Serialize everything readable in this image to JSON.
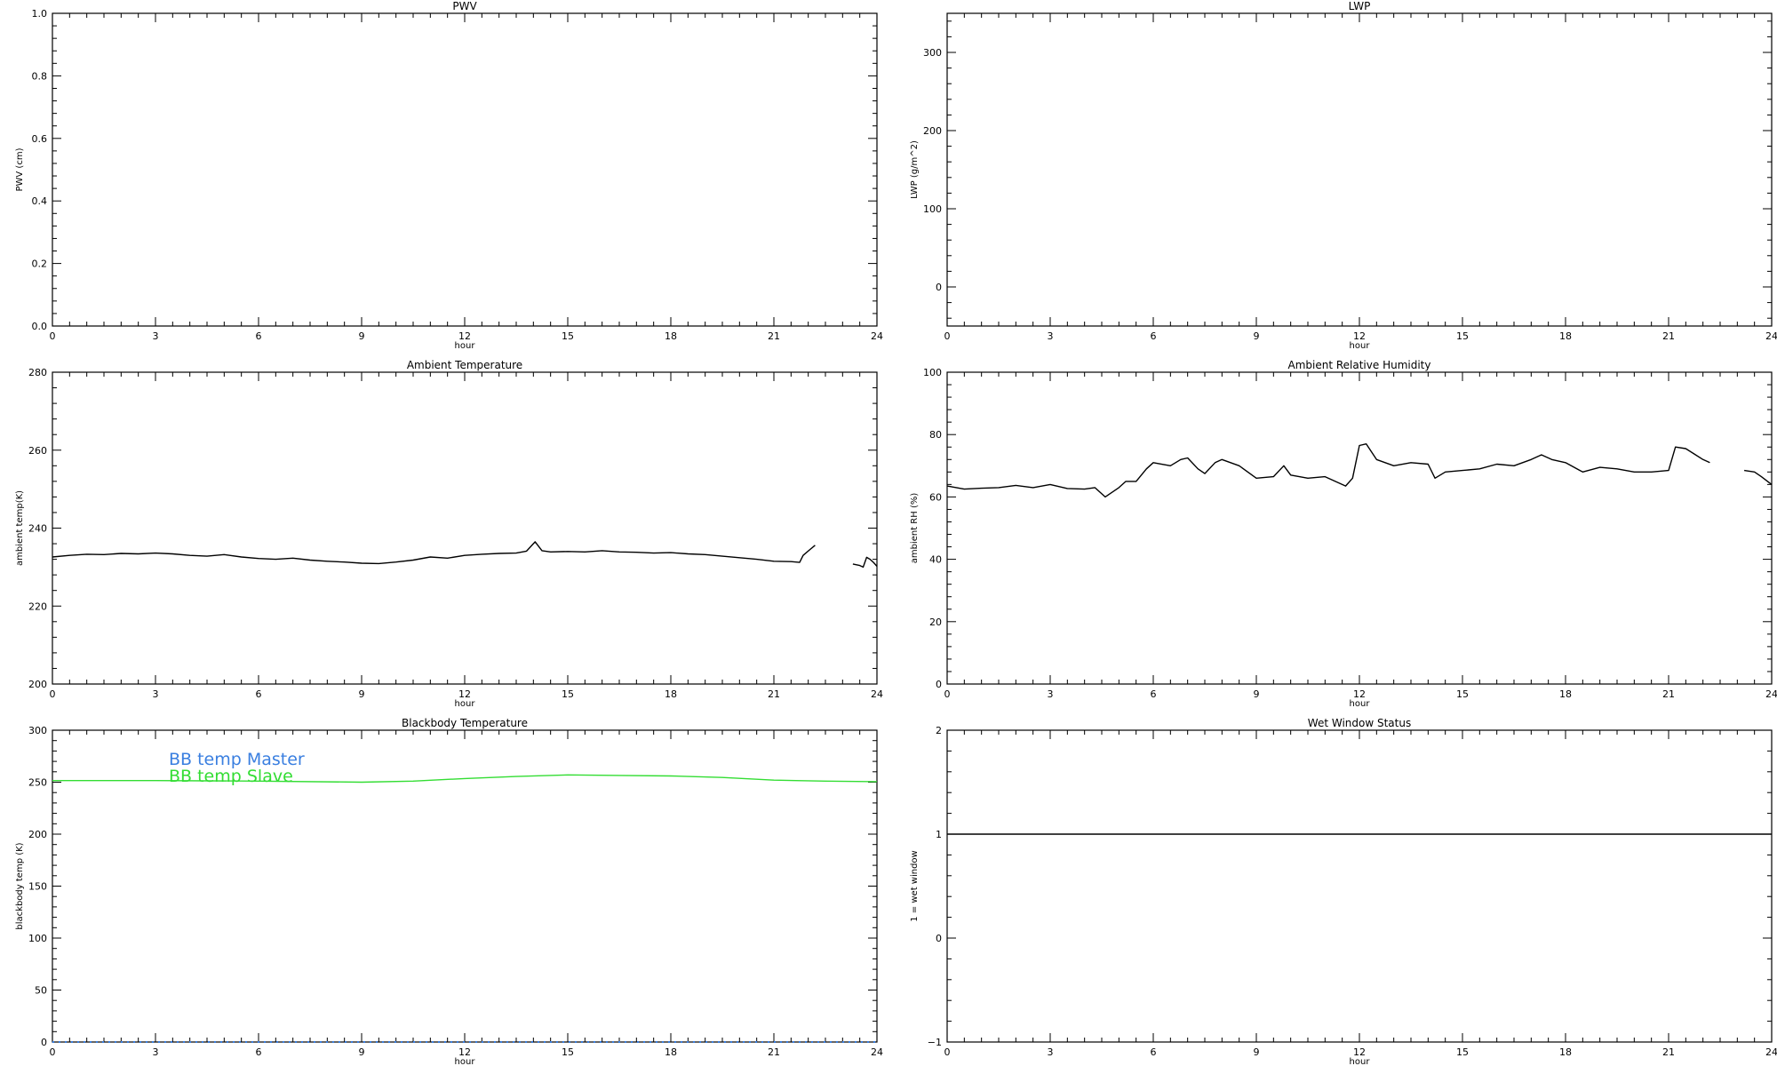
{
  "chart_data": [
    {
      "type": "line",
      "title": "PWV",
      "xlabel": "hour",
      "ylabel": "PWV (cm)",
      "xlim": [
        0,
        24
      ],
      "ylim": [
        0,
        1.0
      ],
      "xticks": [
        0,
        3,
        6,
        9,
        12,
        15,
        18,
        21,
        24
      ],
      "yticks": [
        0.0,
        0.2,
        0.4,
        0.6,
        0.8,
        1.0
      ],
      "ytick_labels": [
        "0.0",
        "0.2",
        "0.4",
        "0.6",
        "0.8",
        "1.0"
      ],
      "series": []
    },
    {
      "type": "line",
      "title": "LWP",
      "xlabel": "hour",
      "ylabel": "LWP (g/m^2)",
      "xlim": [
        0,
        24
      ],
      "ylim": [
        -50,
        350
      ],
      "xticks": [
        0,
        3,
        6,
        9,
        12,
        15,
        18,
        21,
        24
      ],
      "yticks": [
        0,
        100,
        200,
        300
      ],
      "ytick_labels": [
        "0",
        "100",
        "200",
        "300"
      ],
      "series": []
    },
    {
      "type": "line",
      "title": "Ambient Temperature",
      "xlabel": "hour",
      "ylabel": "ambient temp(K)",
      "xlim": [
        0,
        24
      ],
      "ylim": [
        200,
        280
      ],
      "xticks": [
        0,
        3,
        6,
        9,
        12,
        15,
        18,
        21,
        24
      ],
      "yticks": [
        200,
        220,
        240,
        260,
        280
      ],
      "ytick_labels": [
        "200",
        "220",
        "240",
        "260",
        "280"
      ],
      "series": [
        {
          "color": "#000000",
          "segments": [
            [
              [
                0,
                232.6
              ],
              [
                0.5,
                233.0
              ],
              [
                1,
                233.3
              ],
              [
                1.5,
                233.2
              ],
              [
                2,
                233.5
              ],
              [
                2.5,
                233.4
              ],
              [
                3,
                233.6
              ],
              [
                3.5,
                233.4
              ],
              [
                4,
                233.0
              ],
              [
                4.5,
                232.8
              ],
              [
                5,
                233.2
              ],
              [
                5.5,
                232.6
              ],
              [
                6,
                232.2
              ],
              [
                6.5,
                232.0
              ],
              [
                7,
                232.3
              ],
              [
                7.5,
                231.8
              ],
              [
                8,
                231.5
              ],
              [
                8.5,
                231.3
              ],
              [
                9,
                231.0
              ],
              [
                9.5,
                230.9
              ],
              [
                10,
                231.3
              ],
              [
                10.5,
                231.8
              ],
              [
                11,
                232.6
              ],
              [
                11.5,
                232.3
              ],
              [
                12,
                233.0
              ],
              [
                12.5,
                233.3
              ],
              [
                13,
                233.5
              ],
              [
                13.5,
                233.6
              ],
              [
                13.8,
                234.1
              ],
              [
                14.05,
                236.5
              ],
              [
                14.25,
                234.2
              ],
              [
                14.5,
                233.9
              ],
              [
                15,
                234.0
              ],
              [
                15.5,
                233.9
              ],
              [
                16,
                234.2
              ],
              [
                16.5,
                233.9
              ],
              [
                17,
                233.8
              ],
              [
                17.5,
                233.6
              ],
              [
                18,
                233.7
              ],
              [
                18.5,
                233.4
              ],
              [
                19,
                233.2
              ],
              [
                19.5,
                232.8
              ],
              [
                20,
                232.4
              ],
              [
                20.5,
                232.0
              ],
              [
                21,
                231.5
              ],
              [
                21.5,
                231.4
              ],
              [
                21.75,
                231.2
              ],
              [
                21.85,
                233.0
              ],
              [
                22.05,
                234.5
              ],
              [
                22.2,
                235.6
              ]
            ],
            [
              [
                23.3,
                230.8
              ],
              [
                23.5,
                230.4
              ],
              [
                23.6,
                230.0
              ],
              [
                23.7,
                232.5
              ],
              [
                23.8,
                232.0
              ],
              [
                23.9,
                231.2
              ],
              [
                24,
                230.2
              ]
            ]
          ]
        }
      ]
    },
    {
      "type": "line",
      "title": "Ambient Relative Humidity",
      "xlabel": "hour",
      "ylabel": "ambient RH (%)",
      "xlim": [
        0,
        24
      ],
      "ylim": [
        0,
        100
      ],
      "xticks": [
        0,
        3,
        6,
        9,
        12,
        15,
        18,
        21,
        24
      ],
      "yticks": [
        0,
        20,
        40,
        60,
        80,
        100
      ],
      "ytick_labels": [
        "0",
        "20",
        "40",
        "60",
        "80",
        "100"
      ],
      "series": [
        {
          "color": "#000000",
          "segments": [
            [
              [
                0,
                63.5
              ],
              [
                0.5,
                62.5
              ],
              [
                1,
                62.8
              ],
              [
                1.5,
                63.0
              ],
              [
                2,
                63.7
              ],
              [
                2.5,
                63.0
              ],
              [
                3,
                64.0
              ],
              [
                3.5,
                62.7
              ],
              [
                4,
                62.5
              ],
              [
                4.3,
                63.0
              ],
              [
                4.6,
                60.0
              ],
              [
                5,
                63.0
              ],
              [
                5.2,
                65.0
              ],
              [
                5.5,
                65.0
              ],
              [
                5.8,
                69.0
              ],
              [
                6,
                71.0
              ],
              [
                6.5,
                70.0
              ],
              [
                6.8,
                72.0
              ],
              [
                7,
                72.5
              ],
              [
                7.3,
                69.0
              ],
              [
                7.5,
                67.5
              ],
              [
                7.8,
                71.0
              ],
              [
                8,
                72.0
              ],
              [
                8.5,
                70.0
              ],
              [
                9,
                66.0
              ],
              [
                9.5,
                66.5
              ],
              [
                9.8,
                70.0
              ],
              [
                10,
                67.0
              ],
              [
                10.5,
                66.0
              ],
              [
                11,
                66.5
              ],
              [
                11.3,
                65.0
              ],
              [
                11.6,
                63.5
              ],
              [
                11.8,
                66.0
              ],
              [
                12,
                76.5
              ],
              [
                12.2,
                77.0
              ],
              [
                12.5,
                72.0
              ],
              [
                13,
                70.0
              ],
              [
                13.5,
                71.0
              ],
              [
                14,
                70.5
              ],
              [
                14.2,
                66.0
              ],
              [
                14.5,
                68.0
              ],
              [
                15,
                68.5
              ],
              [
                15.5,
                69.0
              ],
              [
                16,
                70.5
              ],
              [
                16.5,
                70.0
              ],
              [
                17,
                72.0
              ],
              [
                17.3,
                73.5
              ],
              [
                17.6,
                72.0
              ],
              [
                18,
                71.0
              ],
              [
                18.5,
                68.0
              ],
              [
                19,
                69.5
              ],
              [
                19.5,
                69.0
              ],
              [
                20,
                68.0
              ],
              [
                20.5,
                68.0
              ],
              [
                21,
                68.5
              ],
              [
                21.2,
                76.0
              ],
              [
                21.5,
                75.5
              ],
              [
                22,
                72.0
              ],
              [
                22.2,
                71.0
              ]
            ],
            [
              [
                23.2,
                68.5
              ],
              [
                23.5,
                68.0
              ],
              [
                23.7,
                66.5
              ],
              [
                24,
                64.0
              ]
            ]
          ]
        }
      ]
    },
    {
      "type": "line",
      "title": "Blackbody Temperature",
      "xlabel": "hour",
      "ylabel": "blackbody temp (K)",
      "xlim": [
        0,
        24
      ],
      "ylim": [
        0,
        300
      ],
      "xticks": [
        0,
        3,
        6,
        9,
        12,
        15,
        18,
        21,
        24
      ],
      "yticks": [
        0,
        50,
        100,
        150,
        200,
        250,
        300
      ],
      "ytick_labels": [
        "0",
        "50",
        "100",
        "150",
        "200",
        "250",
        "300"
      ],
      "legend": [
        "BB temp Master",
        "BB temp Slave"
      ],
      "series": [
        {
          "name": "BB temp Master",
          "color": "#3a7fe0",
          "segments": [
            [
              [
                0,
                0
              ],
              [
                24,
                0
              ]
            ]
          ]
        },
        {
          "name": "BB temp Slave",
          "color": "#33dd33",
          "segments": [
            [
              [
                0,
                251.5
              ],
              [
                3,
                251.5
              ],
              [
                6,
                251.0
              ],
              [
                9,
                250.0
              ],
              [
                10.5,
                251.0
              ],
              [
                12,
                253.5
              ],
              [
                13.5,
                255.5
              ],
              [
                15,
                257.0
              ],
              [
                16.5,
                256.5
              ],
              [
                18,
                256.0
              ],
              [
                19.5,
                254.5
              ],
              [
                21,
                252.0
              ],
              [
                22.5,
                251.0
              ],
              [
                24,
                250.5
              ]
            ]
          ]
        }
      ]
    },
    {
      "type": "line",
      "title": "Wet Window Status",
      "xlabel": "hour",
      "ylabel": "1 = wet window",
      "xlim": [
        0,
        24
      ],
      "ylim": [
        -1,
        2
      ],
      "xticks": [
        0,
        3,
        6,
        9,
        12,
        15,
        18,
        21,
        24
      ],
      "yticks": [
        -1,
        0,
        1,
        2
      ],
      "ytick_labels": [
        "−1",
        "0",
        "1",
        "2"
      ],
      "series": [
        {
          "color": "#000000",
          "segments": [
            [
              [
                0,
                1
              ],
              [
                24,
                1
              ]
            ]
          ]
        }
      ]
    }
  ]
}
